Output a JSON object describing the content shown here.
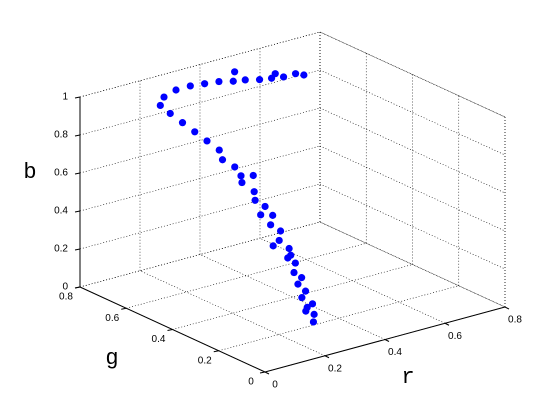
{
  "chart_data": {
    "type": "scatter3d",
    "xlabel": "r",
    "ylabel": "g",
    "zlabel": "b",
    "xlim": [
      0,
      0.8
    ],
    "ylim": [
      0,
      0.8
    ],
    "zlim": [
      0,
      1
    ],
    "xticks": [
      0,
      0.2,
      0.4,
      0.6,
      0.8
    ],
    "yticks": [
      0,
      0.2,
      0.4,
      0.6,
      0.8
    ],
    "zticks": [
      0,
      0.2,
      0.4,
      0.6,
      0.8,
      1
    ],
    "grid": true,
    "series": [
      {
        "color": "#0000ff",
        "x": [
          0.2,
          0.21,
          0.19,
          0.22,
          0.2,
          0.22,
          0.21,
          0.23,
          0.22,
          0.24,
          0.23,
          0.25,
          0.24,
          0.26,
          0.25,
          0.24,
          0.27,
          0.26,
          0.28,
          0.27,
          0.29,
          0.3,
          0.29,
          0.31,
          0.3,
          0.29,
          0.28,
          0.27,
          0.26,
          0.28,
          0.32,
          0.36,
          0.4,
          0.44,
          0.48,
          0.52,
          0.56,
          0.6,
          0.64,
          0.68,
          0.7,
          0.24,
          0.28,
          0.22,
          0.3,
          0.21,
          0.5,
          0.62
        ],
        "y": [
          0.05,
          0.06,
          0.07,
          0.08,
          0.1,
          0.11,
          0.13,
          0.14,
          0.16,
          0.18,
          0.2,
          0.22,
          0.25,
          0.27,
          0.3,
          0.33,
          0.35,
          0.38,
          0.41,
          0.45,
          0.48,
          0.52,
          0.56,
          0.6,
          0.64,
          0.68,
          0.72,
          0.76,
          0.79,
          0.8,
          0.8,
          0.79,
          0.78,
          0.77,
          0.76,
          0.76,
          0.75,
          0.75,
          0.75,
          0.75,
          0.74,
          0.2,
          0.33,
          0.25,
          0.44,
          0.09,
          0.78,
          0.76
        ],
        "z": [
          0.15,
          0.18,
          0.2,
          0.22,
          0.25,
          0.27,
          0.3,
          0.32,
          0.34,
          0.37,
          0.39,
          0.42,
          0.45,
          0.48,
          0.5,
          0.54,
          0.56,
          0.58,
          0.6,
          0.63,
          0.64,
          0.66,
          0.68,
          0.7,
          0.73,
          0.76,
          0.79,
          0.82,
          0.85,
          0.88,
          0.9,
          0.91,
          0.91,
          0.91,
          0.9,
          0.89,
          0.88,
          0.87,
          0.86,
          0.86,
          0.85,
          0.4,
          0.52,
          0.43,
          0.66,
          0.2,
          0.93,
          0.88
        ]
      }
    ]
  }
}
